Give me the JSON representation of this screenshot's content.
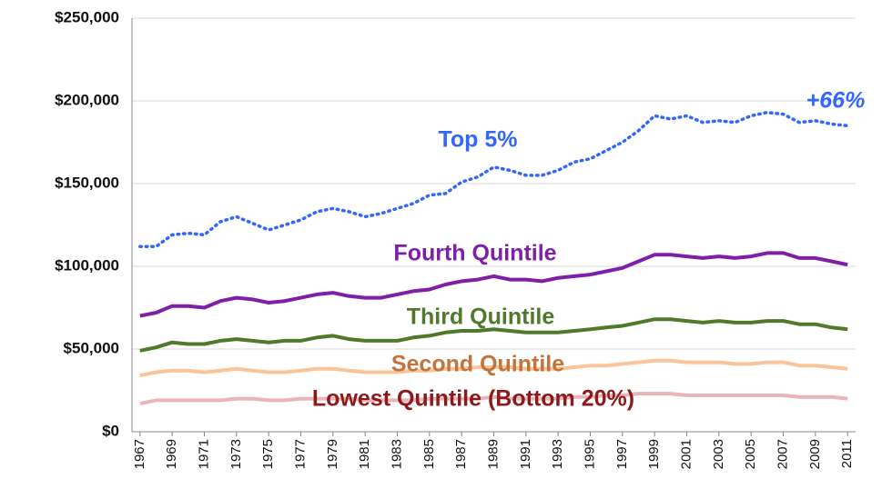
{
  "chart_data": {
    "type": "line",
    "x": [
      1967,
      1968,
      1969,
      1970,
      1971,
      1972,
      1973,
      1974,
      1975,
      1976,
      1977,
      1978,
      1979,
      1980,
      1981,
      1982,
      1983,
      1984,
      1985,
      1986,
      1987,
      1988,
      1989,
      1990,
      1991,
      1992,
      1993,
      1994,
      1995,
      1996,
      1997,
      1998,
      1999,
      2000,
      2001,
      2002,
      2003,
      2004,
      2005,
      2006,
      2007,
      2008,
      2009,
      2010,
      2011
    ],
    "xlim": [
      1966.5,
      2011.5
    ],
    "xticks": [
      1967,
      1969,
      1971,
      1973,
      1975,
      1977,
      1979,
      1981,
      1983,
      1985,
      1987,
      1989,
      1991,
      1993,
      1995,
      1997,
      1999,
      2001,
      2003,
      2005,
      2007,
      2009,
      2011
    ],
    "ylim": [
      0,
      250000
    ],
    "yticks": [
      {
        "value": 0,
        "label": "$0"
      },
      {
        "value": 50000,
        "label": "$50,000"
      },
      {
        "value": 100000,
        "label": "$100,000"
      },
      {
        "value": 150000,
        "label": "$150,000"
      },
      {
        "value": 200000,
        "label": "$200,000"
      },
      {
        "value": 250000,
        "label": "$250,000"
      }
    ],
    "grid": true,
    "series": [
      {
        "name": "Top 5%",
        "color": "#3366ff",
        "label_color": "#3366ff",
        "style": "dotted",
        "values": [
          112000,
          112000,
          119000,
          120000,
          119000,
          127000,
          130000,
          126000,
          122000,
          125000,
          128000,
          133000,
          135000,
          133000,
          130000,
          132000,
          135000,
          138000,
          143000,
          144000,
          151000,
          154000,
          160000,
          158000,
          155000,
          155000,
          158000,
          163000,
          165000,
          170000,
          175000,
          182000,
          191000,
          189000,
          191000,
          187000,
          188000,
          187000,
          191000,
          193000,
          192000,
          187000,
          188000,
          186000,
          185000
        ]
      },
      {
        "name": "Fourth Quintile",
        "color": "#7f1fa8",
        "label_color": "#7f1fa8",
        "style": "solid",
        "values": [
          70000,
          72000,
          76000,
          76000,
          75000,
          79000,
          81000,
          80000,
          78000,
          79000,
          81000,
          83000,
          84000,
          82000,
          81000,
          81000,
          83000,
          85000,
          86000,
          89000,
          91000,
          92000,
          94000,
          92000,
          92000,
          91000,
          93000,
          94000,
          95000,
          97000,
          99000,
          103000,
          107000,
          107000,
          106000,
          105000,
          106000,
          105000,
          106000,
          108000,
          108000,
          105000,
          105000,
          103000,
          101000
        ]
      },
      {
        "name": "Third Quintile",
        "color": "#4e7a2a",
        "label_color": "#4e7a2a",
        "style": "solid",
        "values": [
          49000,
          51000,
          54000,
          53000,
          53000,
          55000,
          56000,
          55000,
          54000,
          55000,
          55000,
          57000,
          58000,
          56000,
          55000,
          55000,
          55000,
          57000,
          58000,
          60000,
          61000,
          61000,
          62000,
          61000,
          60000,
          60000,
          60000,
          61000,
          62000,
          63000,
          64000,
          66000,
          68000,
          68000,
          67000,
          66000,
          67000,
          66000,
          66000,
          67000,
          67000,
          65000,
          65000,
          63000,
          62000
        ]
      },
      {
        "name": "Second Quintile",
        "color": "#f9c49a",
        "label_color": "#c4733a",
        "style": "solid",
        "values": [
          34000,
          36000,
          37000,
          37000,
          36000,
          37000,
          38000,
          37000,
          36000,
          36000,
          37000,
          38000,
          38000,
          37000,
          36000,
          36000,
          36000,
          37000,
          37000,
          38000,
          38000,
          39000,
          39000,
          39000,
          38000,
          38000,
          38000,
          39000,
          40000,
          40000,
          41000,
          42000,
          43000,
          43000,
          42000,
          42000,
          42000,
          41000,
          41000,
          42000,
          42000,
          40000,
          40000,
          39000,
          38000
        ]
      },
      {
        "name": "Lowest Quintile (Bottom 20%)",
        "color": "#eab4b8",
        "label_color": "#8b1a1a",
        "style": "solid",
        "values": [
          17000,
          19000,
          19000,
          19000,
          19000,
          19000,
          20000,
          20000,
          19000,
          19000,
          20000,
          20000,
          20000,
          20000,
          19000,
          19000,
          19000,
          19000,
          20000,
          20000,
          20000,
          20000,
          21000,
          20000,
          20000,
          20000,
          20000,
          21000,
          21000,
          22000,
          22000,
          23000,
          23000,
          23000,
          22000,
          22000,
          22000,
          22000,
          22000,
          22000,
          22000,
          21000,
          21000,
          21000,
          20000
        ]
      }
    ],
    "annotations": [
      {
        "text": "+66%",
        "color": "#3366ff"
      }
    ]
  }
}
